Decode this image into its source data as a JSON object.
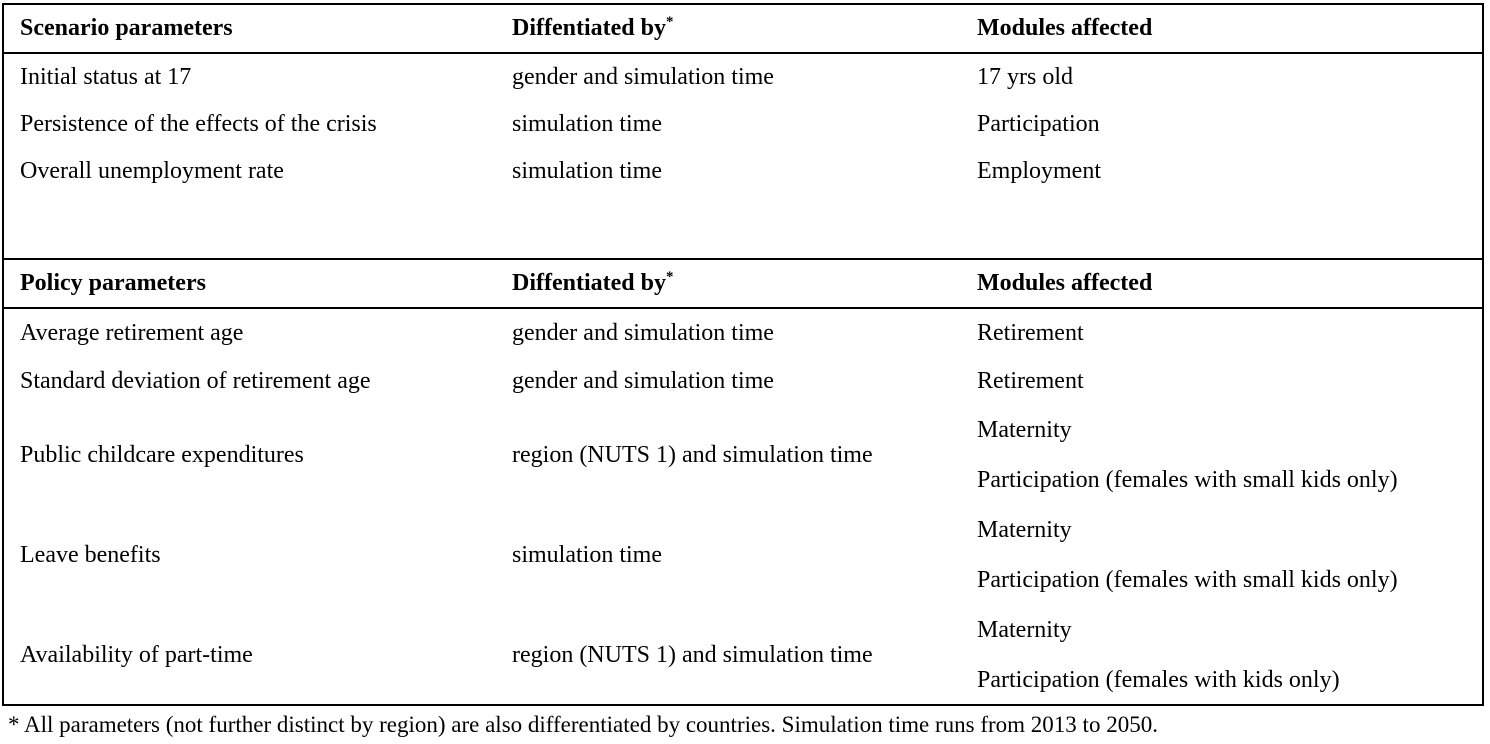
{
  "sections": [
    {
      "header": {
        "title": "Scenario parameters",
        "differentiated_by": "Diffentiated by",
        "sup": "*",
        "modules": "Modules affected"
      },
      "rows": [
        {
          "parameter": "Initial status at 17",
          "differentiated_by": "gender and simulation time",
          "modules": [
            "17 yrs old"
          ]
        },
        {
          "parameter": "Persistence of the effects of the crisis",
          "differentiated_by": "simulation time",
          "modules": [
            "Participation"
          ]
        },
        {
          "parameter": "Overall unemployment rate",
          "differentiated_by": "simulation time",
          "modules": [
            "Employment"
          ]
        }
      ]
    },
    {
      "header": {
        "title": "Policy parameters",
        "differentiated_by": "Diffentiated by",
        "sup": "*",
        "modules": "Modules affected"
      },
      "rows": [
        {
          "parameter": "Average retirement age",
          "differentiated_by": "gender and simulation time",
          "modules": [
            "Retirement"
          ]
        },
        {
          "parameter": "Standard deviation of retirement age",
          "differentiated_by": "gender and simulation time",
          "modules": [
            "Retirement"
          ]
        },
        {
          "parameter": "Public childcare expenditures",
          "differentiated_by": "region (NUTS 1) and simulation time",
          "modules": [
            "Maternity",
            "Participation (females with small kids only)"
          ]
        },
        {
          "parameter": "Leave benefits",
          "differentiated_by": "simulation time",
          "modules": [
            "Maternity",
            "Participation (females with small kids only)"
          ]
        },
        {
          "parameter": "Availability of part-time",
          "differentiated_by": "region (NUTS 1) and simulation time",
          "modules": [
            "Maternity",
            "Participation (females with kids only)"
          ]
        }
      ]
    }
  ],
  "footnote": "* All parameters (not further distinct by region) are also differentiated by countries. Simulation time runs from 2013 to 2050."
}
